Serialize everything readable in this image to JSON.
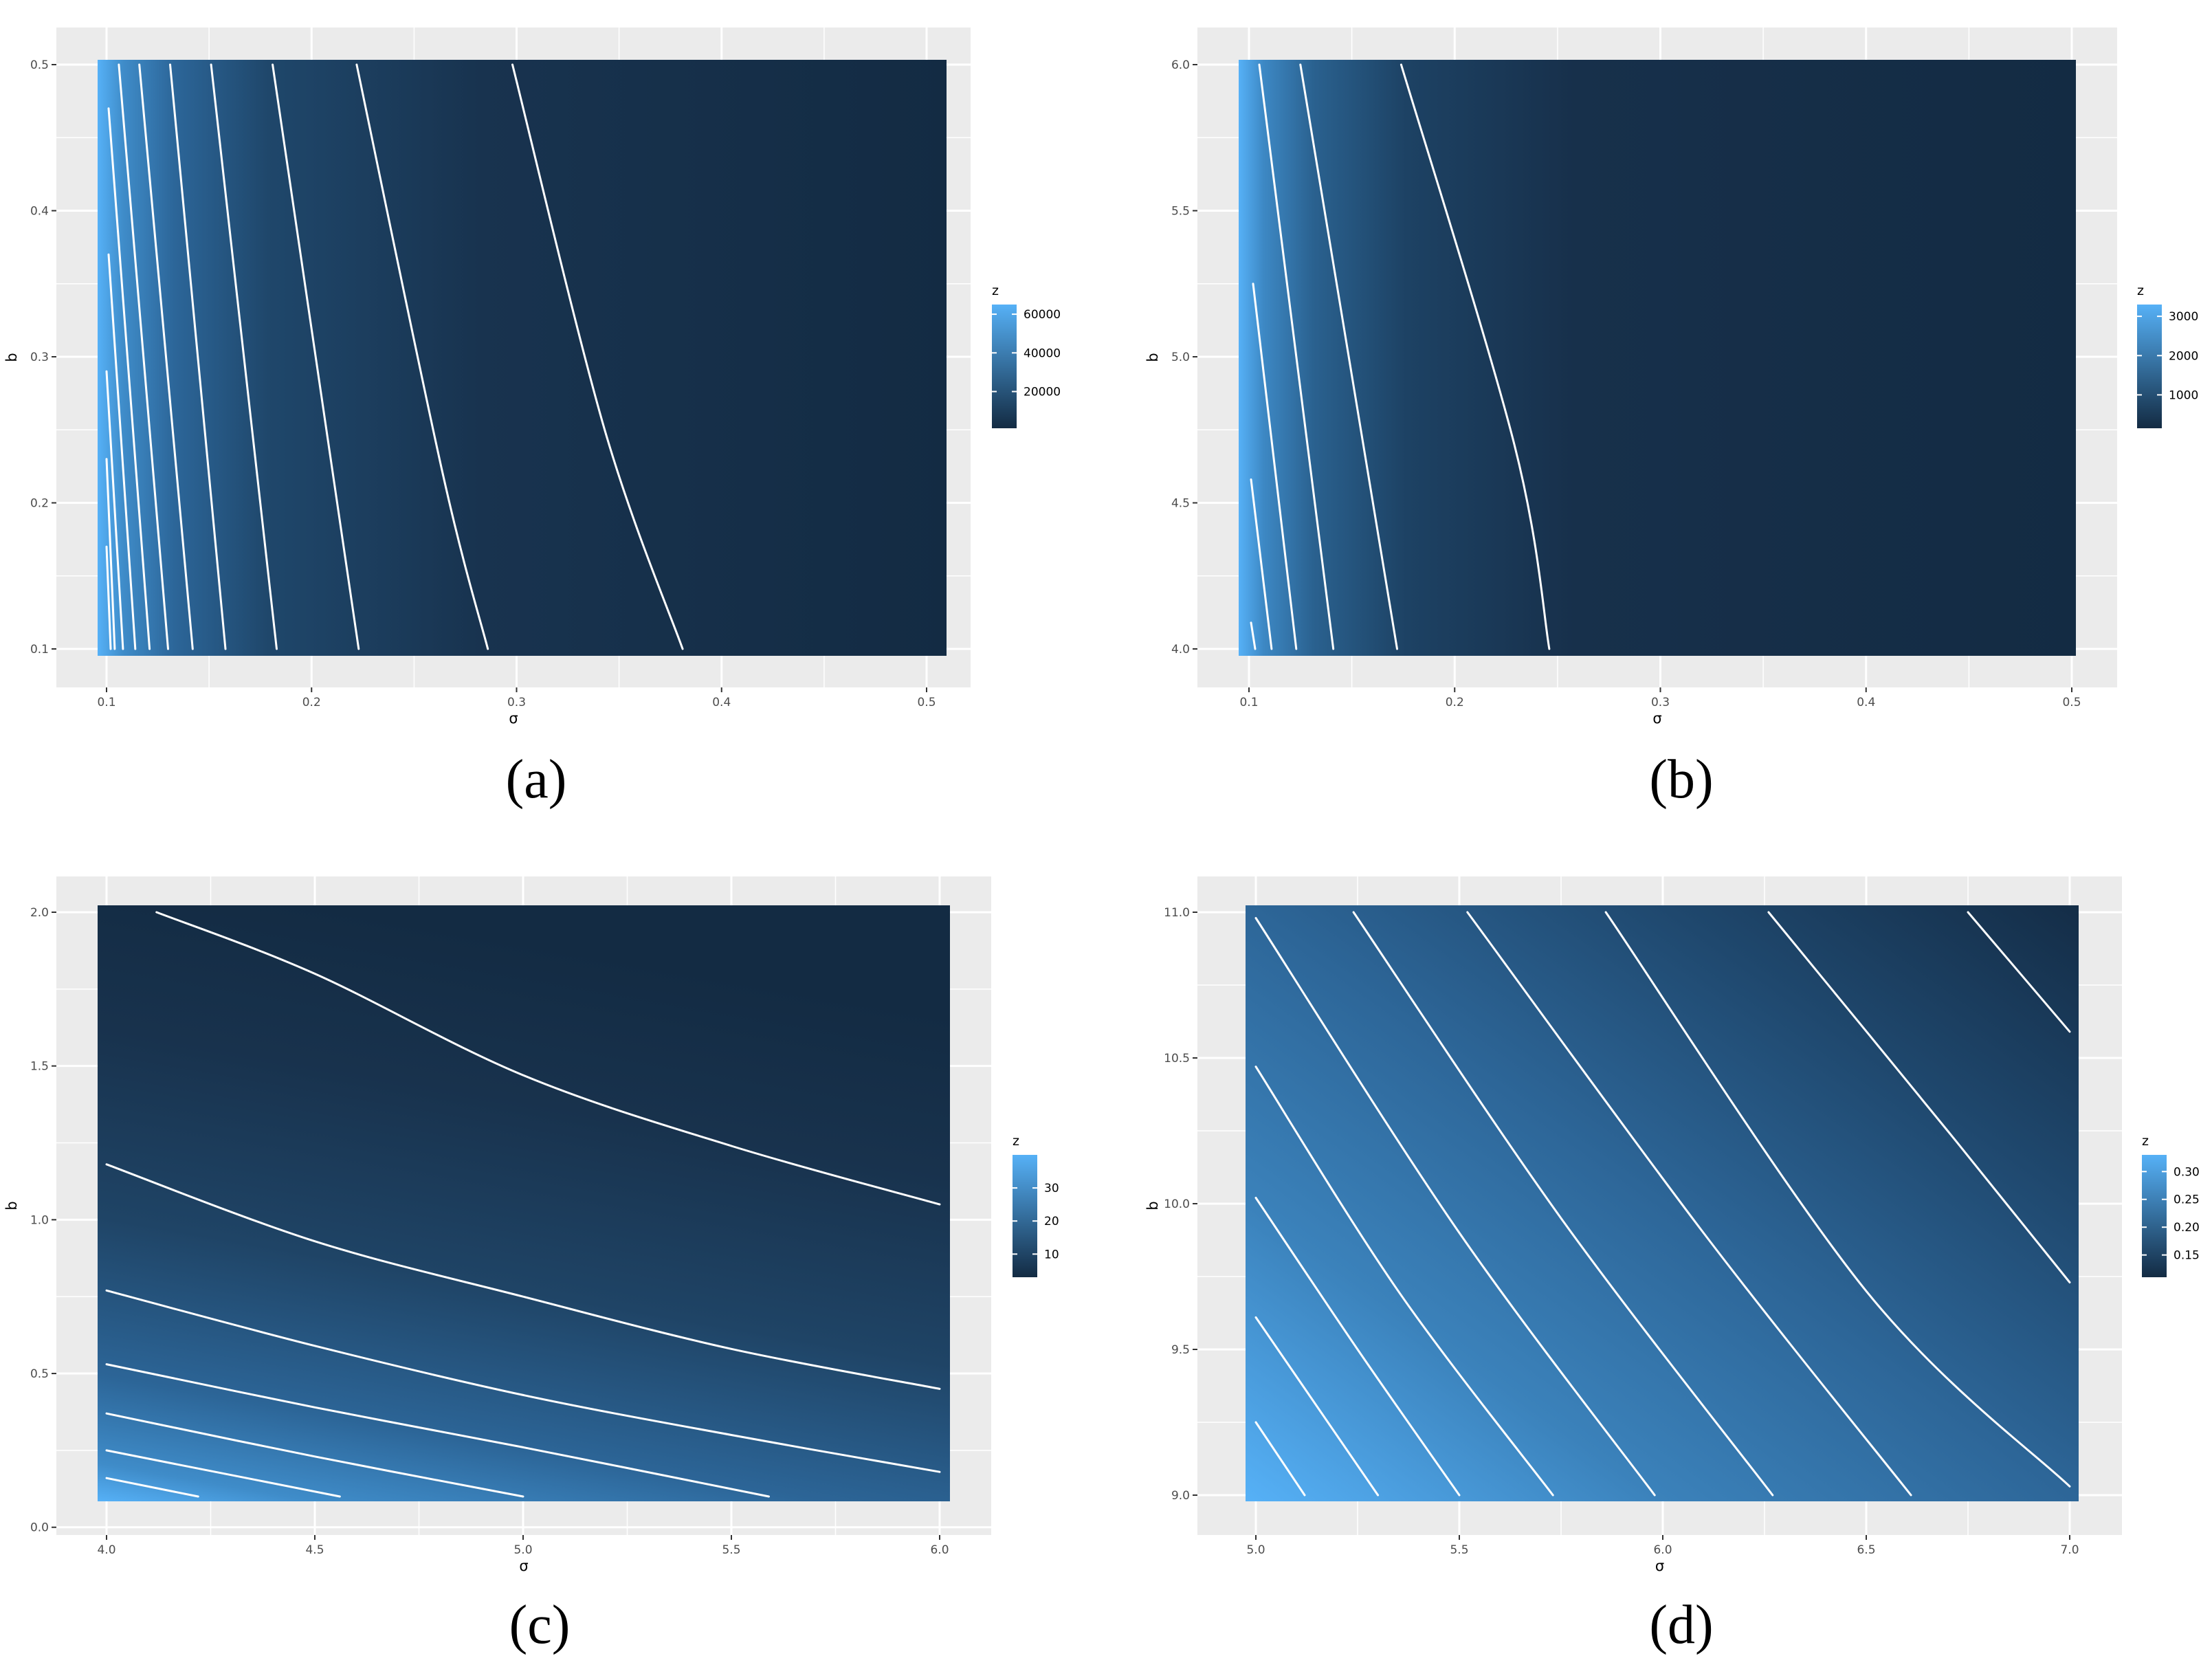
{
  "colors": {
    "low": "#132B43",
    "high": "#56B1F7",
    "contour": "#ffffff",
    "panel_bg": "#EBEBEB",
    "grid": "#ffffff"
  },
  "chart_data": [
    {
      "type": "heatmap",
      "caption": "(a)",
      "xlabel": "σ",
      "ylabel": "b",
      "xlim": [
        0.1,
        0.5
      ],
      "ylim": [
        0.1,
        0.5
      ],
      "x_ticks": [
        "0.1",
        "0.2",
        "0.3",
        "0.4",
        "0.5"
      ],
      "y_ticks": [
        "0.1",
        "0.2",
        "0.3",
        "0.4",
        "0.5"
      ],
      "legend_title": "z",
      "legend_labels": [
        "60000",
        "40000",
        "20000"
      ],
      "legend_values": [
        60000,
        40000,
        20000
      ],
      "z_range": [
        1000,
        65000
      ],
      "contours": [
        [
          [
            0.1,
            0.17
          ],
          [
            0.102,
            0.1
          ]
        ],
        [
          [
            0.1,
            0.23
          ],
          [
            0.104,
            0.1
          ]
        ],
        [
          [
            0.1,
            0.29
          ],
          [
            0.108,
            0.1
          ]
        ],
        [
          [
            0.101,
            0.37
          ],
          [
            0.114,
            0.1
          ]
        ],
        [
          [
            0.101,
            0.47
          ],
          [
            0.121,
            0.1
          ]
        ],
        [
          [
            0.106,
            0.5
          ],
          [
            0.13,
            0.1
          ]
        ],
        [
          [
            0.116,
            0.5
          ],
          [
            0.142,
            0.1
          ]
        ],
        [
          [
            0.131,
            0.5
          ],
          [
            0.158,
            0.1
          ]
        ],
        [
          [
            0.151,
            0.5
          ],
          [
            0.183,
            0.1
          ]
        ],
        [
          [
            0.181,
            0.5
          ],
          [
            0.223,
            0.1
          ]
        ],
        [
          [
            0.222,
            0.5
          ],
          [
            0.264,
            0.22
          ],
          [
            0.286,
            0.1
          ]
        ],
        [
          [
            0.298,
            0.5
          ],
          [
            0.343,
            0.25
          ],
          [
            0.381,
            0.1
          ]
        ]
      ]
    },
    {
      "type": "heatmap",
      "caption": "(b)",
      "xlabel": "σ",
      "ylabel": "b",
      "xlim": [
        0.1,
        0.5
      ],
      "ylim": [
        4.0,
        6.0
      ],
      "x_ticks": [
        "0.1",
        "0.2",
        "0.3",
        "0.4",
        "0.5"
      ],
      "y_ticks": [
        "4.0",
        "4.5",
        "5.0",
        "5.5",
        "6.0"
      ],
      "legend_title": "z",
      "legend_labels": [
        "3000",
        "2000",
        "1000"
      ],
      "legend_values": [
        3000,
        2000,
        1000
      ],
      "z_range": [
        150,
        3300
      ],
      "contours": [
        [
          [
            0.101,
            4.09
          ],
          [
            0.103,
            4.0
          ]
        ],
        [
          [
            0.101,
            4.58
          ],
          [
            0.111,
            4.0
          ]
        ],
        [
          [
            0.102,
            5.25
          ],
          [
            0.123,
            4.0
          ]
        ],
        [
          [
            0.105,
            6.0
          ],
          [
            0.141,
            4.0
          ]
        ],
        [
          [
            0.125,
            6.0
          ],
          [
            0.172,
            4.0
          ]
        ],
        [
          [
            0.174,
            6.0
          ],
          [
            0.229,
            4.7
          ],
          [
            0.246,
            4.0
          ]
        ]
      ]
    },
    {
      "type": "heatmap",
      "caption": "(c)",
      "xlabel": "σ",
      "ylabel": "b",
      "xlim": [
        4.0,
        6.0
      ],
      "ylim": [
        0.1,
        2.0
      ],
      "x_ticks": [
        "4.0",
        "4.5",
        "5.0",
        "5.5",
        "6.0"
      ],
      "y_ticks": [
        "0.0",
        "0.5",
        "1.0",
        "1.5",
        "2.0"
      ],
      "legend_title": "z",
      "legend_labels": [
        "30",
        "20",
        "10"
      ],
      "legend_values": [
        30,
        20,
        10
      ],
      "z_range": [
        3,
        40
      ],
      "contours": [
        [
          [
            4.0,
            0.16
          ],
          [
            4.22,
            0.1
          ]
        ],
        [
          [
            4.0,
            0.25
          ],
          [
            4.56,
            0.1
          ]
        ],
        [
          [
            4.0,
            0.37
          ],
          [
            4.5,
            0.23
          ],
          [
            5.0,
            0.1
          ]
        ],
        [
          [
            4.0,
            0.53
          ],
          [
            4.5,
            0.39
          ],
          [
            5.0,
            0.26
          ],
          [
            5.59,
            0.1
          ]
        ],
        [
          [
            4.0,
            0.77
          ],
          [
            4.5,
            0.59
          ],
          [
            5.0,
            0.43
          ],
          [
            5.5,
            0.3
          ],
          [
            6.0,
            0.18
          ]
        ],
        [
          [
            4.0,
            1.18
          ],
          [
            4.5,
            0.93
          ],
          [
            5.0,
            0.75
          ],
          [
            5.5,
            0.58
          ],
          [
            6.0,
            0.45
          ]
        ],
        [
          [
            4.12,
            2.0
          ],
          [
            4.5,
            1.8
          ],
          [
            5.0,
            1.47
          ],
          [
            5.5,
            1.24
          ],
          [
            6.0,
            1.05
          ]
        ]
      ]
    },
    {
      "type": "heatmap",
      "caption": "(d)",
      "xlabel": "σ",
      "ylabel": "b",
      "xlim": [
        5.0,
        7.0
      ],
      "ylim": [
        9.0,
        11.0
      ],
      "x_ticks": [
        "5.0",
        "5.5",
        "6.0",
        "6.5",
        "7.0"
      ],
      "y_ticks": [
        "9.0",
        "9.5",
        "10.0",
        "10.5",
        "11.0"
      ],
      "legend_title": "z",
      "legend_labels": [
        "0.30",
        "0.25",
        "0.20",
        "0.15"
      ],
      "legend_values": [
        0.3,
        0.25,
        0.2,
        0.15
      ],
      "z_range": [
        0.11,
        0.33
      ],
      "contours": [
        [
          [
            5.0,
            9.25
          ],
          [
            5.12,
            9.0
          ]
        ],
        [
          [
            5.0,
            9.61
          ],
          [
            5.3,
            9.0
          ]
        ],
        [
          [
            5.0,
            10.02
          ],
          [
            5.25,
            9.5
          ],
          [
            5.5,
            9.0
          ]
        ],
        [
          [
            5.0,
            10.47
          ],
          [
            5.35,
            9.7
          ],
          [
            5.73,
            9.0
          ]
        ],
        [
          [
            5.0,
            10.98
          ],
          [
            5.5,
            9.9
          ],
          [
            5.98,
            9.0
          ]
        ],
        [
          [
            5.24,
            11.0
          ],
          [
            5.75,
            9.95
          ],
          [
            6.27,
            9.0
          ]
        ],
        [
          [
            5.52,
            11.0
          ],
          [
            6.1,
            9.9
          ],
          [
            6.61,
            9.0
          ]
        ],
        [
          [
            5.86,
            11.0
          ],
          [
            6.5,
            9.7
          ],
          [
            7.0,
            9.03
          ]
        ],
        [
          [
            6.26,
            11.0
          ],
          [
            6.7,
            10.25
          ],
          [
            7.0,
            9.73
          ]
        ],
        [
          [
            6.75,
            11.0
          ],
          [
            7.0,
            10.59
          ]
        ]
      ]
    }
  ]
}
